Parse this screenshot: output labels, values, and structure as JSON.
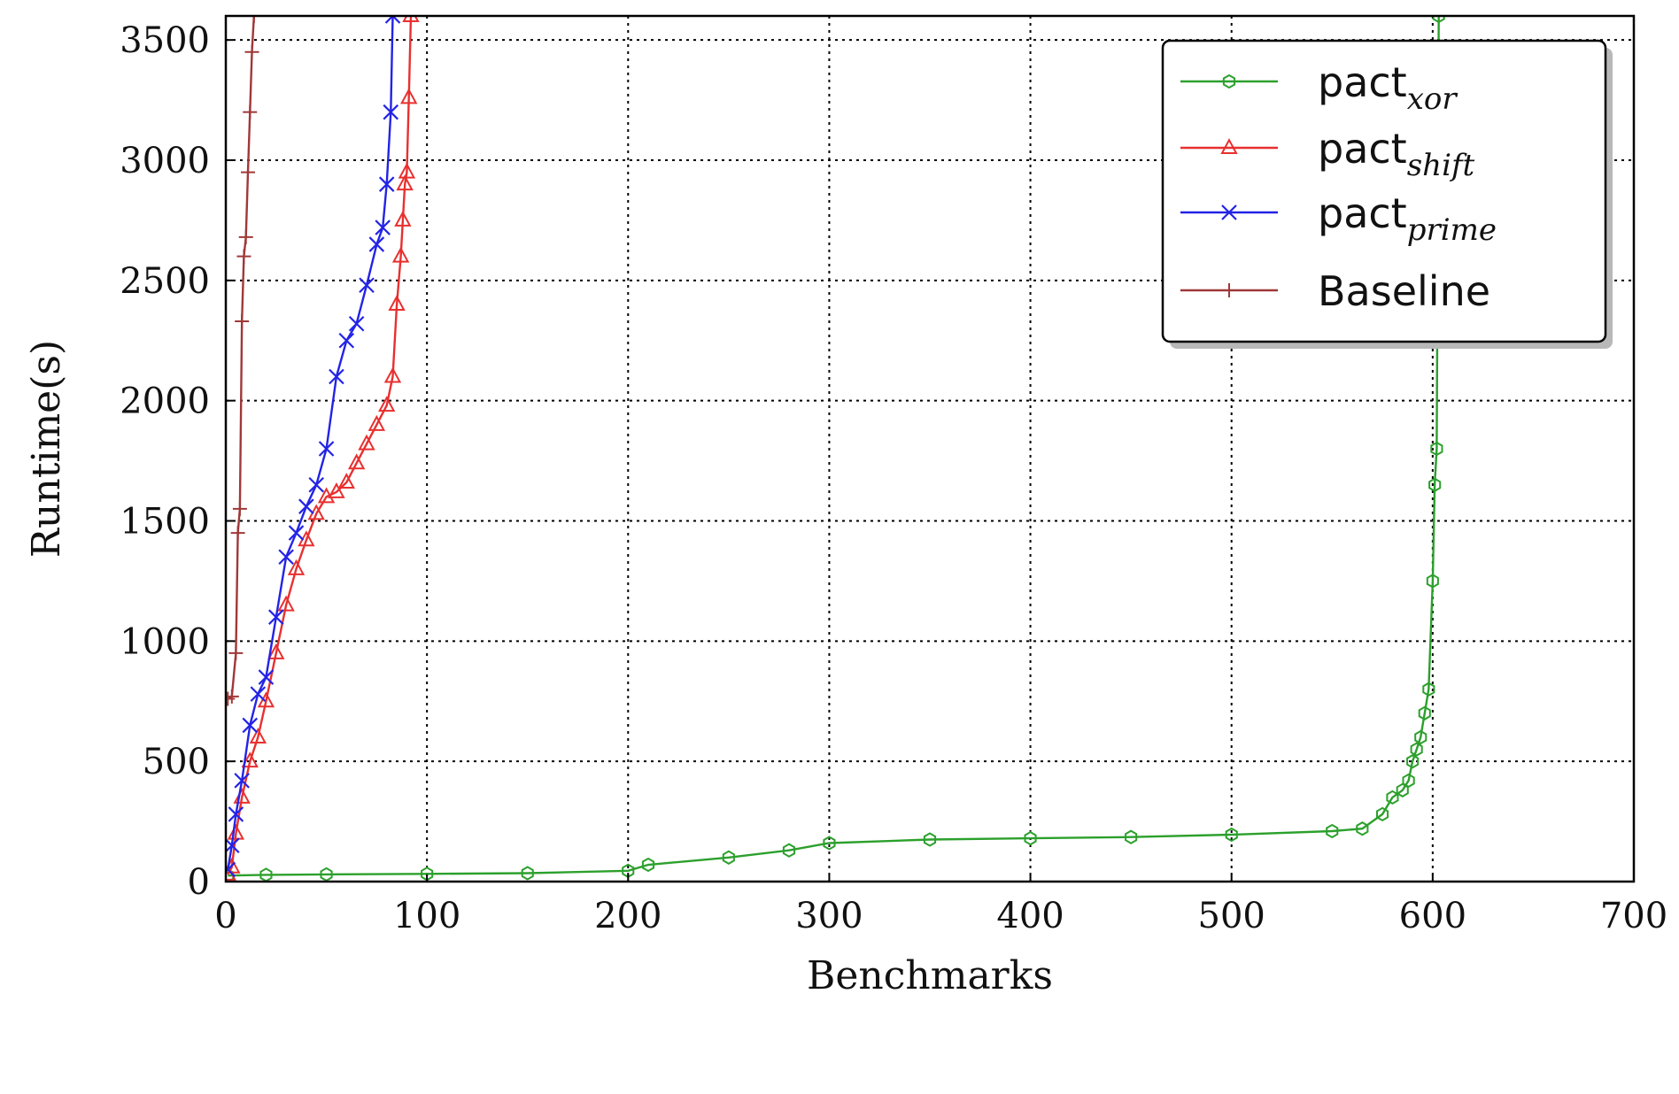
{
  "chart_data": {
    "type": "line",
    "xlabel": "Benchmarks",
    "ylabel": "Runtime(s)",
    "xlim": [
      0,
      700
    ],
    "ylim": [
      0,
      3600
    ],
    "xticks": [
      0,
      100,
      200,
      300,
      400,
      500,
      600,
      700
    ],
    "yticks": [
      0,
      500,
      1000,
      1500,
      2000,
      2500,
      3000,
      3500
    ],
    "grid": true,
    "legend_position": "top-right",
    "series": [
      {
        "name": "pact",
        "subscript": "xor",
        "color": "#2ca02c",
        "marker": "hexagon",
        "x": [
          1,
          20,
          50,
          100,
          150,
          200,
          210,
          250,
          280,
          300,
          350,
          400,
          450,
          500,
          550,
          565,
          575,
          580,
          585,
          588,
          590,
          592,
          594,
          596,
          598,
          600,
          601,
          602,
          603
        ],
        "y": [
          25,
          28,
          30,
          32,
          35,
          45,
          70,
          100,
          130,
          160,
          175,
          180,
          185,
          195,
          210,
          220,
          280,
          350,
          380,
          420,
          500,
          550,
          600,
          700,
          800,
          1250,
          1650,
          1800,
          3600
        ]
      },
      {
        "name": "pact",
        "subscript": "shift",
        "color": "#e8302f",
        "marker": "triangle",
        "x": [
          1,
          3,
          5,
          8,
          12,
          16,
          20,
          25,
          30,
          35,
          40,
          45,
          50,
          55,
          60,
          65,
          70,
          75,
          80,
          83,
          85,
          87,
          88,
          89,
          90,
          91,
          92
        ],
        "y": [
          30,
          60,
          200,
          350,
          500,
          600,
          750,
          950,
          1150,
          1300,
          1420,
          1530,
          1600,
          1620,
          1660,
          1740,
          1820,
          1900,
          1980,
          2100,
          2400,
          2600,
          2750,
          2900,
          2950,
          3260,
          3600
        ]
      },
      {
        "name": "pact",
        "subscript": "prime",
        "color": "#2323e6",
        "marker": "x",
        "x": [
          1,
          3,
          5,
          8,
          12,
          16,
          20,
          25,
          30,
          35,
          40,
          45,
          50,
          55,
          60,
          65,
          70,
          75,
          78,
          80,
          82,
          83
        ],
        "y": [
          50,
          150,
          280,
          420,
          650,
          780,
          850,
          1100,
          1350,
          1450,
          1560,
          1650,
          1800,
          2100,
          2250,
          2320,
          2480,
          2650,
          2720,
          2900,
          3200,
          3600
        ]
      },
      {
        "name": "Baseline",
        "subscript": "",
        "color": "#a03838",
        "marker": "plus",
        "x": [
          1,
          3,
          5,
          6,
          7,
          8,
          9,
          10,
          11,
          12,
          13,
          14
        ],
        "y": [
          760,
          770,
          950,
          1450,
          1550,
          2330,
          2600,
          2680,
          2950,
          3200,
          3450,
          3600
        ]
      }
    ]
  }
}
